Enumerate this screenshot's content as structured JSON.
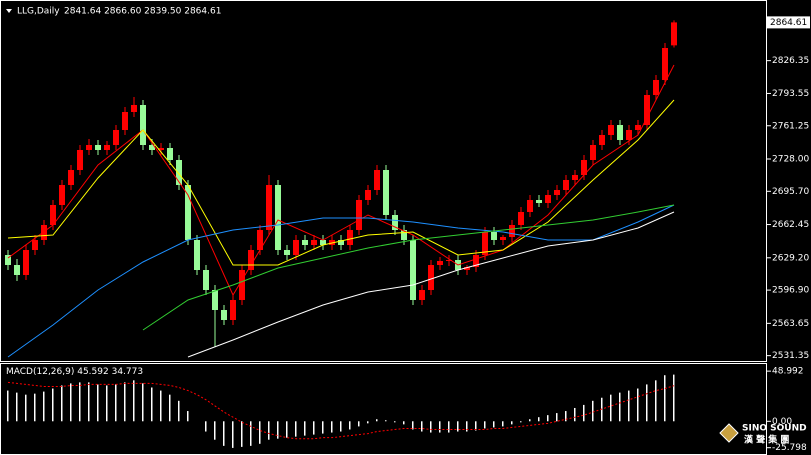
{
  "chart_data": [
    {
      "type": "candlestick",
      "title": "LLG,Daily",
      "subtitle": "2841.64 2866.60 2839.50 2864.61",
      "up_color": "#ff0000",
      "down_color": "#98fb98",
      "open": [
        2632,
        2622,
        2612,
        2637,
        2647,
        2662,
        2682,
        2702,
        2717,
        2737,
        2742,
        2737,
        2742,
        2757,
        2775,
        2782,
        2742,
        2737,
        2739,
        2727,
        2702,
        2647,
        2617,
        2597,
        2577,
        2567,
        2587,
        2617,
        2637,
        2657,
        2702,
        2637,
        2632,
        2647,
        2642,
        2647,
        2642,
        2647,
        2642,
        2657,
        2687,
        2697,
        2717,
        2672,
        2657,
        2647,
        2587,
        2597,
        2622,
        2626,
        2627,
        2617,
        2620,
        2632,
        2655,
        2647,
        2650,
        2662,
        2675,
        2687,
        2684,
        2692,
        2697,
        2707,
        2712,
        2727,
        2742,
        2752,
        2762,
        2747,
        2757,
        2762,
        2792,
        2807,
        2841.64
      ],
      "high": [
        2637,
        2628,
        2642,
        2652,
        2667,
        2687,
        2707,
        2722,
        2742,
        2748,
        2747,
        2746,
        2762,
        2780,
        2790,
        2787,
        2748,
        2744,
        2744,
        2732,
        2707,
        2652,
        2622,
        2602,
        2582,
        2592,
        2622,
        2642,
        2662,
        2712,
        2707,
        2642,
        2652,
        2652,
        2652,
        2652,
        2652,
        2652,
        2662,
        2692,
        2702,
        2722,
        2722,
        2677,
        2662,
        2652,
        2602,
        2627,
        2630,
        2632,
        2632,
        2622,
        2637,
        2660,
        2660,
        2652,
        2667,
        2680,
        2692,
        2692,
        2697,
        2702,
        2712,
        2717,
        2732,
        2747,
        2757,
        2767,
        2767,
        2762,
        2767,
        2797,
        2812,
        2844,
        2866.6
      ],
      "low": [
        2617,
        2606,
        2607,
        2632,
        2642,
        2657,
        2677,
        2697,
        2712,
        2732,
        2732,
        2732,
        2737,
        2752,
        2770,
        2737,
        2732,
        2732,
        2722,
        2697,
        2642,
        2612,
        2592,
        2540,
        2562,
        2562,
        2582,
        2612,
        2632,
        2652,
        2632,
        2627,
        2627,
        2637,
        2637,
        2637,
        2637,
        2637,
        2637,
        2652,
        2682,
        2692,
        2667,
        2652,
        2642,
        2582,
        2582,
        2592,
        2617,
        2621,
        2612,
        2612,
        2615,
        2627,
        2642,
        2642,
        2645,
        2657,
        2670,
        2680,
        2679,
        2687,
        2692,
        2702,
        2707,
        2722,
        2737,
        2747,
        2742,
        2742,
        2752,
        2757,
        2787,
        2802,
        2839.5
      ],
      "close": [
        2622,
        2612,
        2637,
        2647,
        2662,
        2682,
        2702,
        2717,
        2737,
        2742,
        2737,
        2742,
        2757,
        2775,
        2782,
        2742,
        2737,
        2739,
        2727,
        2702,
        2647,
        2617,
        2597,
        2577,
        2567,
        2587,
        2617,
        2637,
        2657,
        2702,
        2637,
        2632,
        2647,
        2642,
        2647,
        2642,
        2647,
        2642,
        2657,
        2687,
        2697,
        2717,
        2672,
        2657,
        2647,
        2587,
        2597,
        2622,
        2626,
        2627,
        2617,
        2620,
        2632,
        2655,
        2647,
        2650,
        2662,
        2675,
        2687,
        2684,
        2692,
        2697,
        2707,
        2712,
        2727,
        2742,
        2752,
        2762,
        2747,
        2757,
        2762,
        2792,
        2807,
        2839,
        2864.61
      ],
      "lines": [
        {
          "color": "#ff0000",
          "x": [
            0,
            5,
            10,
            15,
            20,
            25,
            30,
            35,
            40,
            45,
            50,
            55,
            60,
            65,
            70,
            74
          ],
          "values": [
            2629,
            2662,
            2722,
            2757,
            2692,
            2592,
            2667,
            2647,
            2672,
            2652,
            2622,
            2637,
            2672,
            2722,
            2752,
            2822
          ]
        },
        {
          "color": "#ffff00",
          "x": [
            0,
            5,
            10,
            15,
            20,
            25,
            30,
            35,
            40,
            45,
            50,
            55,
            60,
            65,
            70,
            74
          ],
          "values": [
            2649,
            2652,
            2709,
            2757,
            2702,
            2622,
            2622,
            2642,
            2652,
            2655,
            2632,
            2637,
            2665,
            2707,
            2747,
            2787
          ]
        },
        {
          "color": "#1e90ff",
          "x": [
            0,
            5,
            10,
            15,
            20,
            25,
            30,
            35,
            40,
            45,
            50,
            55,
            60,
            65,
            70,
            74
          ],
          "values": [
            2530,
            2562,
            2597,
            2625,
            2647,
            2657,
            2662,
            2669,
            2669,
            2665,
            2659,
            2655,
            2647,
            2647,
            2665,
            2682
          ]
        },
        {
          "color": "#32cd32",
          "x": [
            15,
            20,
            25,
            30,
            35,
            40,
            45,
            50,
            55,
            60,
            65,
            70,
            74
          ],
          "values": [
            2557,
            2587,
            2602,
            2619,
            2629,
            2639,
            2647,
            2652,
            2657,
            2662,
            2667,
            2675,
            2682
          ]
        },
        {
          "color": "#ffffff",
          "x": [
            20,
            25,
            30,
            35,
            40,
            45,
            50,
            55,
            60,
            65,
            70,
            74
          ],
          "values": [
            2530,
            2547,
            2565,
            2582,
            2595,
            2602,
            2617,
            2629,
            2641,
            2647,
            2659,
            2675
          ]
        }
      ],
      "last_price": 2864.61,
      "ylim": [
        2529,
        2868
      ],
      "yticks": [
        2826.35,
        2793.55,
        2761.25,
        {
          "value": 2728.0,
          "label": "2728.00"
        },
        {
          "value": 2695.7,
          "label": "2695.70"
        },
        2662.45,
        {
          "value": 2629.2,
          "label": "2629.20"
        },
        {
          "value": 2596.9,
          "label": "2596.90"
        },
        2563.65,
        2531.35
      ]
    },
    {
      "type": "macd",
      "title": "MACD(12,26,9)",
      "series": [
        {
          "color": "#ffffff",
          "values": [
            30,
            28,
            26,
            27,
            29,
            32,
            35,
            37,
            38,
            38,
            36,
            35,
            36,
            38,
            40,
            37,
            33,
            30,
            26,
            20,
            10,
            0,
            -10,
            -18,
            -24,
            -26,
            -25,
            -24,
            -22,
            -18,
            -17,
            -16,
            -15,
            -14,
            -13,
            -12,
            -11,
            -10,
            -8,
            -5,
            -2,
            2,
            1,
            -1,
            -3,
            -8,
            -10,
            -11,
            -11,
            -11,
            -10,
            -10,
            -9,
            -7,
            -6,
            -5,
            -3,
            -1,
            2,
            4,
            6,
            8,
            10,
            13,
            16,
            20,
            23,
            26,
            28,
            30,
            32,
            36,
            40,
            45,
            45.592
          ]
        },
        {
          "color": "#ff0000",
          "values": [
            38,
            37,
            36,
            35,
            34,
            34,
            34,
            35,
            35,
            36,
            36,
            36,
            36,
            37,
            37,
            37,
            37,
            36,
            35,
            33,
            30,
            26,
            21,
            15,
            9,
            4,
            -1,
            -5,
            -9,
            -12,
            -14,
            -16,
            -17,
            -17,
            -17,
            -16,
            -16,
            -15,
            -14,
            -13,
            -12,
            -10,
            -9,
            -8,
            -7,
            -7,
            -7,
            -8,
            -8,
            -8,
            -8,
            -8,
            -8,
            -8,
            -7,
            -7,
            -6,
            -5,
            -4,
            -3,
            -2,
            0,
            2,
            4,
            6,
            9,
            12,
            15,
            18,
            21,
            24,
            27,
            30,
            32,
            34.773
          ]
        }
      ],
      "ylim": [
        -30,
        54
      ],
      "yticks": [
        48.992,
        {
          "value": 0,
          "label": "0.00"
        },
        -25.798
      ]
    }
  ],
  "watermark": {
    "name": "SINO SOUND",
    "chinese": "漢 聲 集 團"
  }
}
